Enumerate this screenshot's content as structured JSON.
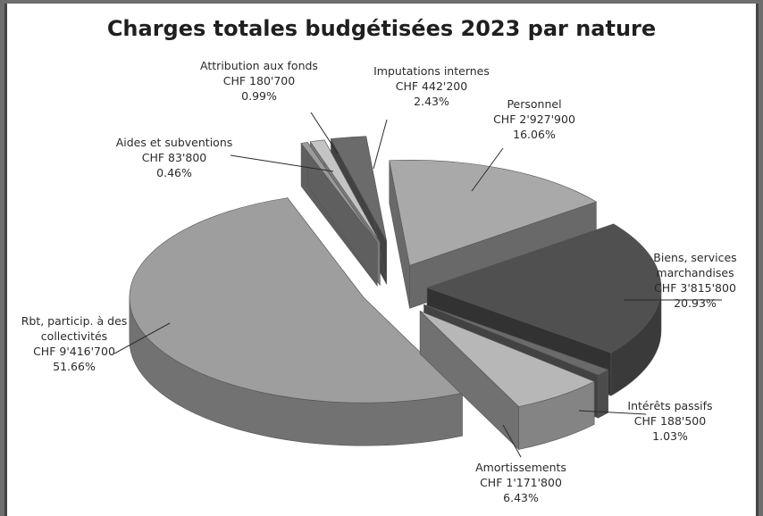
{
  "chart_data": {
    "type": "pie",
    "title": "Charges totales budgétisées 2023 par nature",
    "slices": [
      {
        "label_lines": [
          "Personnel",
          "CHF 2'927'900",
          "16.06%"
        ],
        "value": 2927900,
        "percent": 16.06,
        "color": "#a9a9a9"
      },
      {
        "label_lines": [
          "Biens, services",
          "marchandises",
          "CHF 3'815'800",
          "20.93%"
        ],
        "value": 3815800,
        "percent": 20.93,
        "color": "#505050"
      },
      {
        "label_lines": [
          "Intérêts passifs",
          "CHF 188'500",
          "1.03%"
        ],
        "value": 188500,
        "percent": 1.03,
        "color": "#6a6a6a"
      },
      {
        "label_lines": [
          "Amortissements",
          "CHF 1'171'800",
          "6.43%"
        ],
        "value": 1171800,
        "percent": 6.43,
        "color": "#b7b7b7"
      },
      {
        "label_lines": [
          "Rbt, particip. à des",
          "collectivités",
          "CHF 9'416'700",
          "51.66%"
        ],
        "value": 9416700,
        "percent": 51.66,
        "color": "#9e9e9e"
      },
      {
        "label_lines": [
          "Aides et subventions",
          "CHF 83'800",
          "0.46%"
        ],
        "value": 83800,
        "percent": 0.46,
        "color": "#9a9a9a"
      },
      {
        "label_lines": [
          "Attribution aux fonds",
          "CHF 180'700",
          "0.99%"
        ],
        "value": 180700,
        "percent": 0.99,
        "color": "#c4c4c4"
      },
      {
        "label_lines": [
          "Imputations internes",
          "CHF 442'200",
          "2.43%"
        ],
        "value": 442200,
        "percent": 2.43,
        "color": "#6b6b6b"
      }
    ]
  }
}
